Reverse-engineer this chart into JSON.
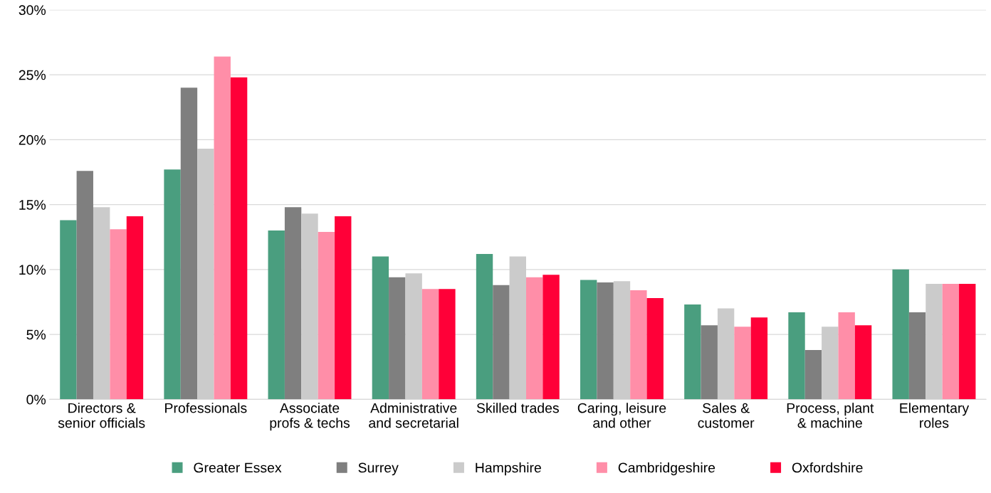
{
  "chart_data": {
    "type": "bar",
    "categories": [
      "Directors &\nsenior officials",
      "Professionals",
      "Associate\nprofs & techs",
      "Administrative\nand secretarial",
      "Skilled trades",
      "Caring, leisure\nand other",
      "Sales &\ncustomer",
      "Process, plant\n& machine",
      "Elementary\nroles"
    ],
    "series": [
      {
        "name": "Greater Essex",
        "color": "#4a9e7f",
        "values": [
          13.8,
          17.7,
          13.0,
          11.0,
          11.2,
          9.2,
          7.3,
          6.7,
          10.0
        ]
      },
      {
        "name": "Surrey",
        "color": "#7f7f7f",
        "values": [
          17.6,
          24.0,
          14.8,
          9.4,
          8.8,
          9.0,
          5.7,
          3.8,
          6.7
        ]
      },
      {
        "name": "Hampshire",
        "color": "#cbcbcb",
        "values": [
          14.8,
          19.3,
          14.3,
          9.7,
          11.0,
          9.1,
          7.0,
          5.6,
          8.9
        ]
      },
      {
        "name": "Cambridgeshire",
        "color": "#ff8ea8",
        "values": [
          13.1,
          26.4,
          12.9,
          8.5,
          9.4,
          8.4,
          5.6,
          6.7,
          8.9
        ]
      },
      {
        "name": "Oxfordshire",
        "color": "#ff0038",
        "values": [
          14.1,
          24.8,
          14.1,
          8.5,
          9.6,
          7.8,
          6.3,
          5.7,
          8.9
        ]
      }
    ],
    "ylim": [
      0,
      30
    ],
    "yticks": [
      {
        "value": 0,
        "label": "0%"
      },
      {
        "value": 5,
        "label": "5%"
      },
      {
        "value": 10,
        "label": "10%"
      },
      {
        "value": 15,
        "label": "15%"
      },
      {
        "value": 20,
        "label": "20%"
      },
      {
        "value": 25,
        "label": "25%"
      },
      {
        "value": 30,
        "label": "30%"
      }
    ],
    "grid": "y",
    "legend": "bottom"
  }
}
